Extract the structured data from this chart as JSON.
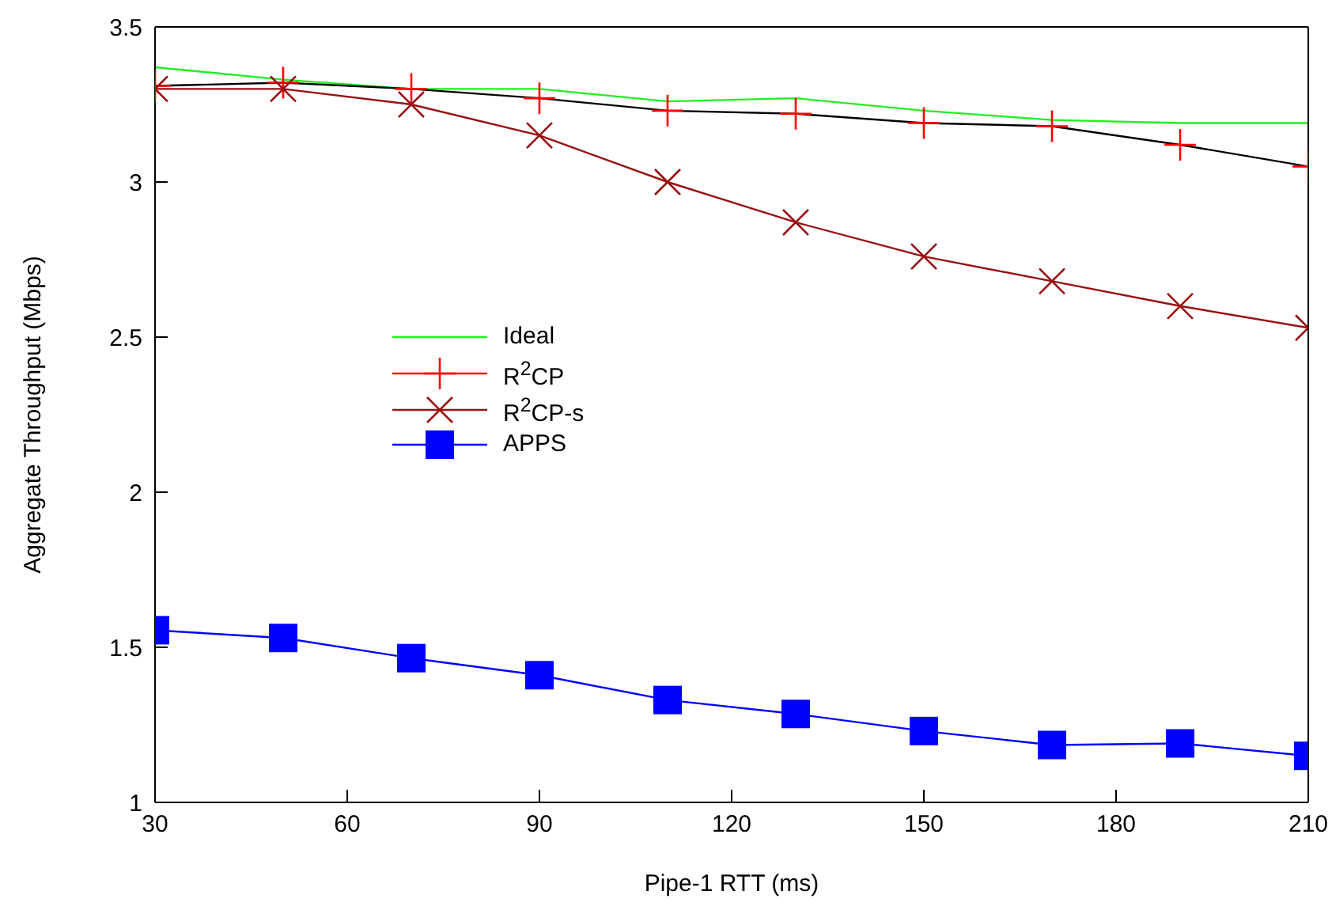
{
  "chart_data": {
    "type": "line",
    "xlabel": "Pipe-1 RTT (ms)",
    "ylabel": "Aggregate Throughput (Mbps)",
    "x": [
      30,
      50,
      70,
      90,
      110,
      130,
      150,
      170,
      190,
      210
    ],
    "series": [
      {
        "name": "Ideal",
        "color": "#22ee22",
        "marker": "none",
        "values": [
          3.37,
          3.33,
          3.3,
          3.3,
          3.26,
          3.27,
          3.23,
          3.2,
          3.19,
          3.19
        ]
      },
      {
        "name": "R$^{2}$CP",
        "color": "#ff0000",
        "marker": "plus",
        "values": [
          3.31,
          3.32,
          3.3,
          3.27,
          3.23,
          3.22,
          3.19,
          3.18,
          3.12,
          3.05
        ]
      },
      {
        "name": "R$^{2}$CP-s",
        "color": "#991111",
        "marker": "cross",
        "values": [
          3.3,
          3.3,
          3.25,
          3.15,
          3.0,
          2.87,
          2.76,
          2.68,
          2.6,
          2.53
        ]
      },
      {
        "name": "APPS",
        "color": "#0000ff",
        "marker": "square",
        "values": [
          1.555,
          1.53,
          1.465,
          1.41,
          1.33,
          1.285,
          1.23,
          1.185,
          1.19,
          1.15
        ]
      }
    ],
    "xlim": [
      30,
      210
    ],
    "xticks": [
      30,
      60,
      90,
      120,
      150,
      180,
      210
    ],
    "ylim": [
      1,
      3.5
    ],
    "yticks": [
      1,
      1.5,
      2,
      2.5,
      3,
      3.5
    ],
    "grid": false,
    "legend": "center left"
  }
}
